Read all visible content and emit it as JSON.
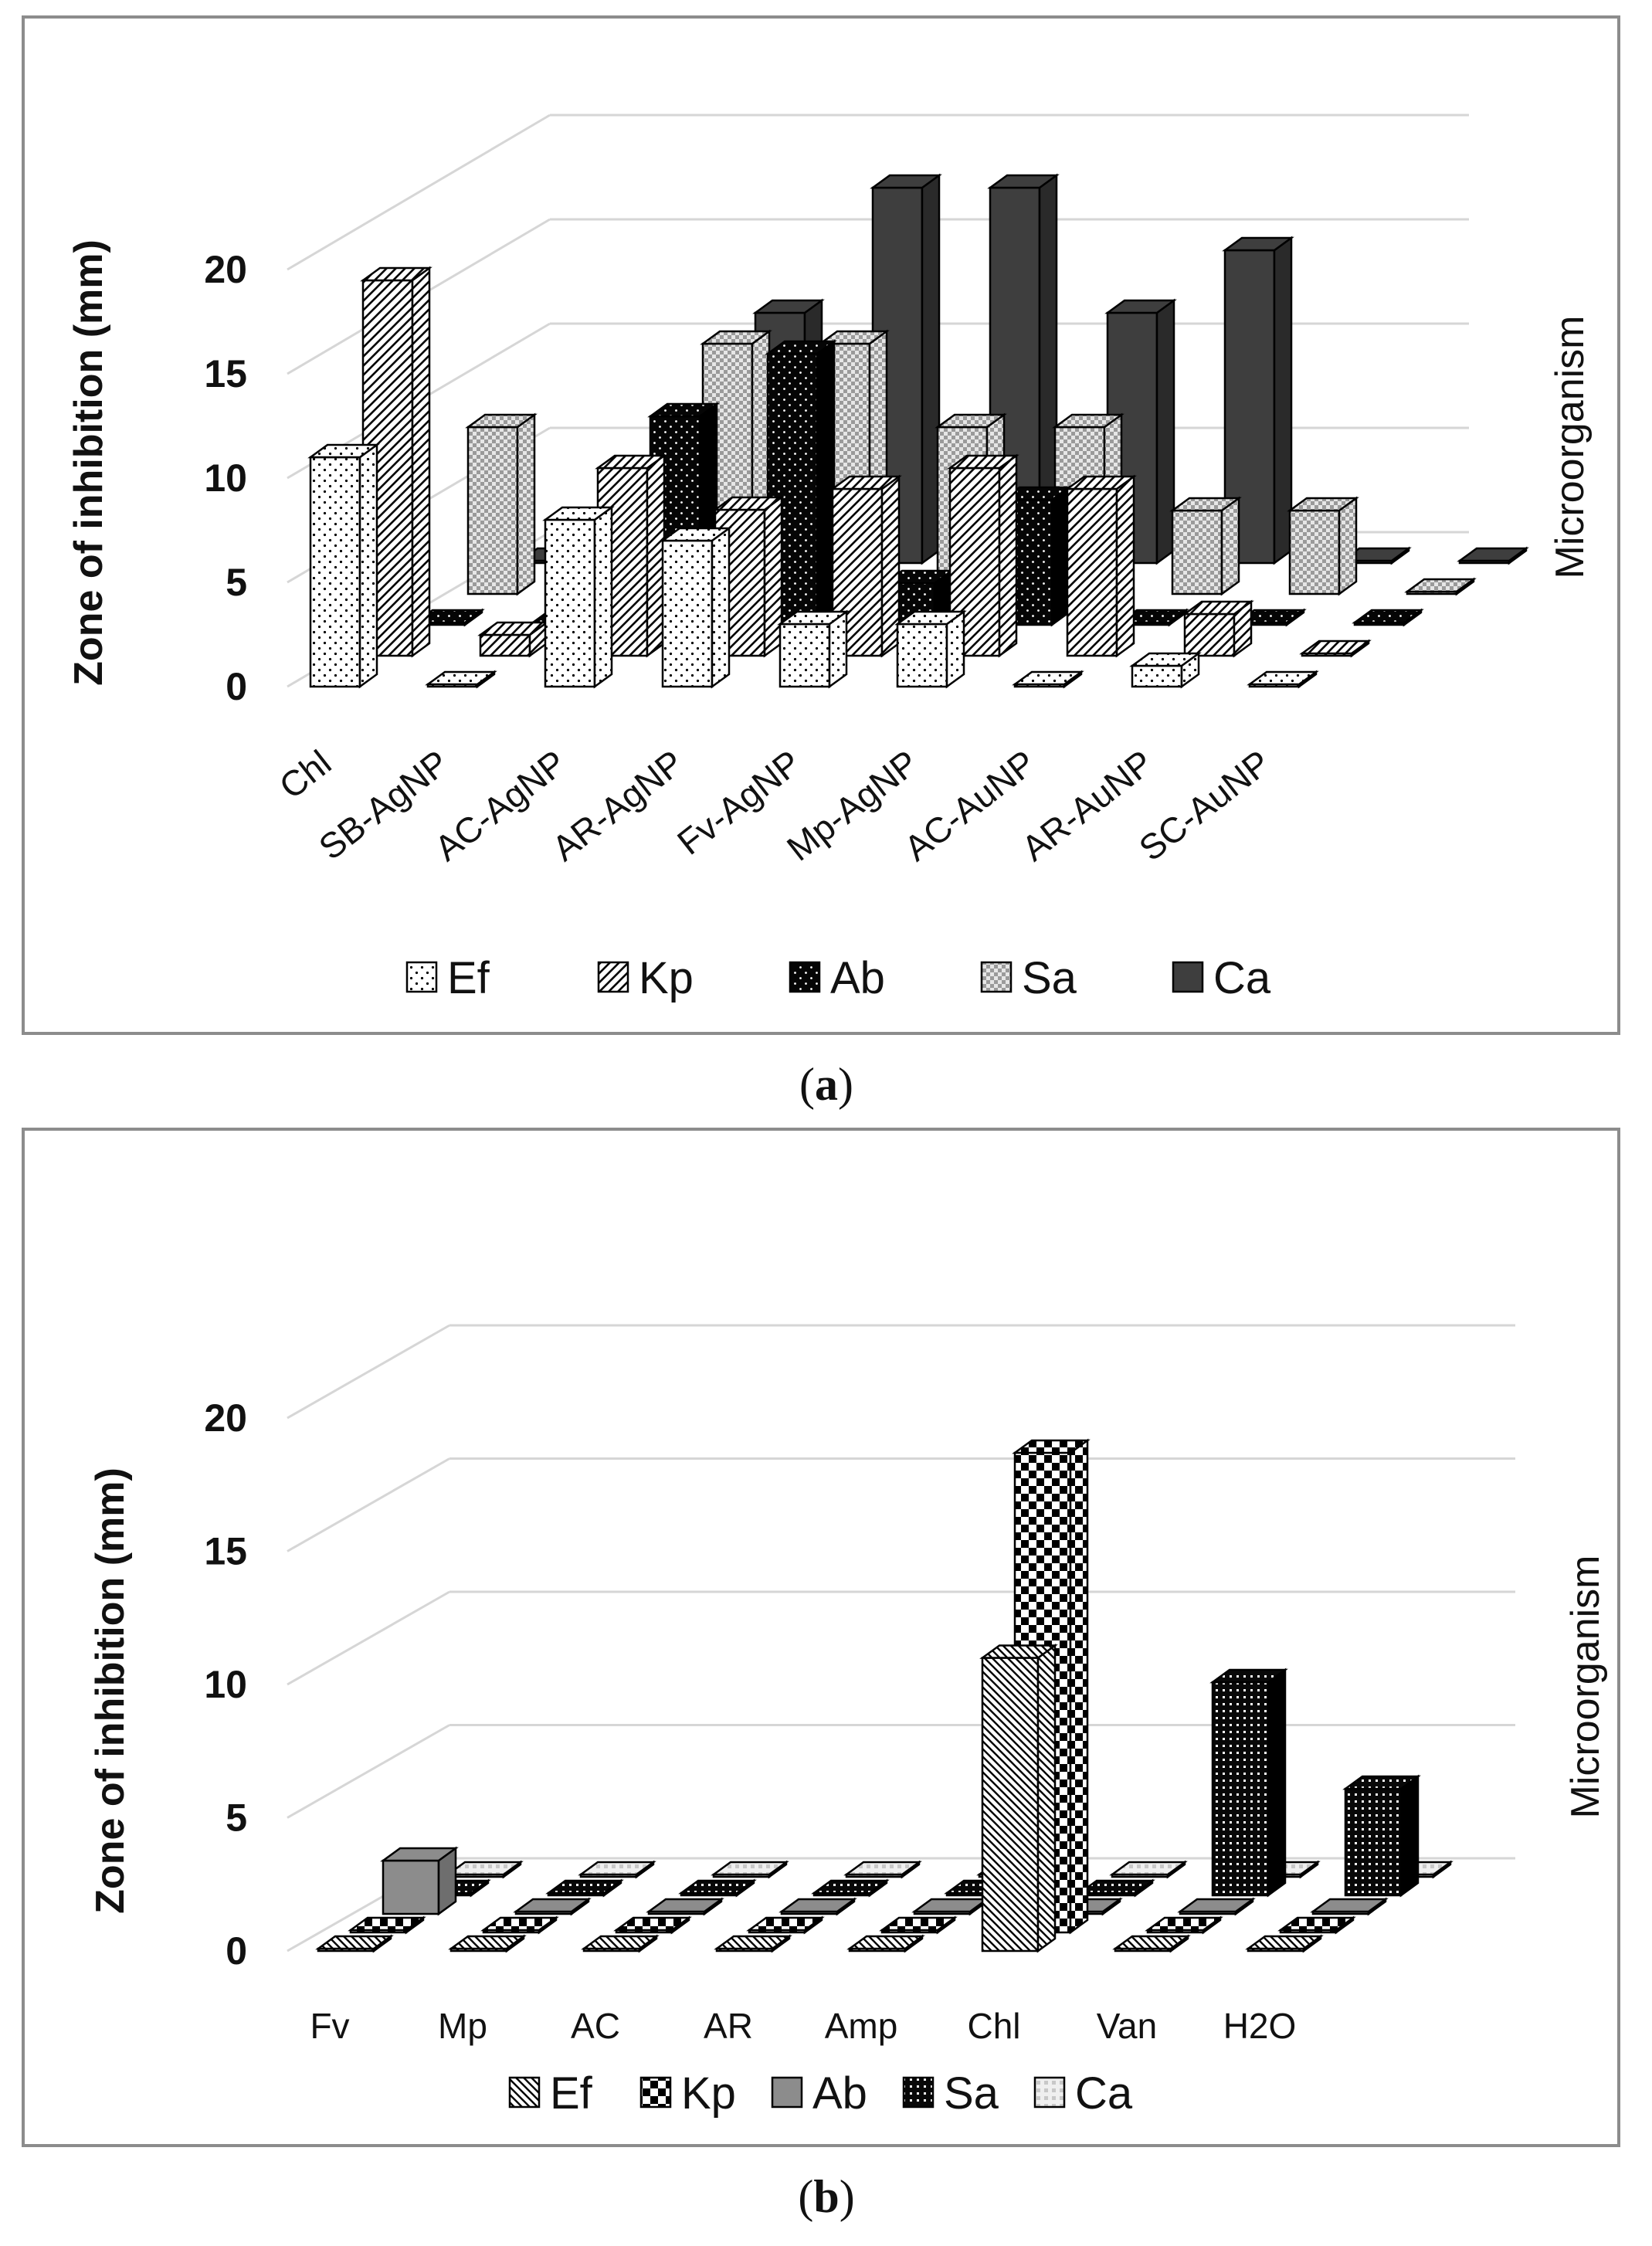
{
  "captions": {
    "a": "a",
    "b": "b"
  },
  "chart_data": [
    {
      "type": "bar",
      "subtype": "3d-clustered-bar",
      "panel": "a",
      "ylabel": "Zone of inhibition (mm)",
      "zlabel": "Microorganism",
      "ylim": [
        0,
        20
      ],
      "yticks": [
        0,
        5,
        10,
        15,
        20
      ],
      "categories": [
        "Chl",
        "SB-AgNP",
        "AC-AgNP",
        "AR-AgNP",
        "Fv-AgNP",
        "Mp-AgNP",
        "AC-AuNP",
        "AR-AuNP",
        "SC-AuNP"
      ],
      "series": [
        {
          "name": "Ef",
          "pattern": "dots",
          "values": [
            11,
            0,
            8,
            7,
            3,
            3,
            0,
            1,
            0
          ]
        },
        {
          "name": "Kp",
          "pattern": "diag",
          "values": [
            18,
            1,
            9,
            7,
            8,
            9,
            8,
            2,
            0
          ]
        },
        {
          "name": "Ab",
          "pattern": "black-dots",
          "values": [
            0,
            0,
            10,
            13,
            2,
            6,
            0,
            0,
            0
          ]
        },
        {
          "name": "Sa",
          "pattern": "grey-check",
          "values": [
            8,
            0,
            12,
            12,
            8,
            8,
            4,
            4,
            0
          ]
        },
        {
          "name": "Ca",
          "pattern": "dark",
          "values": [
            0,
            0,
            12,
            18,
            18,
            12,
            15,
            0,
            0
          ]
        }
      ],
      "legend": [
        "Ef",
        "Kp",
        "Ab",
        "Sa",
        "Ca"
      ]
    },
    {
      "type": "bar",
      "subtype": "3d-clustered-bar",
      "panel": "b",
      "ylabel": "Zone of inhibition (mm)",
      "zlabel": "Microorganism",
      "ylim": [
        0,
        20
      ],
      "yticks": [
        0,
        5,
        10,
        15,
        20
      ],
      "categories": [
        "Fv",
        "Mp",
        "AC",
        "AR",
        "Amp",
        "Chl",
        "Van",
        "H2O"
      ],
      "series": [
        {
          "name": "Ef",
          "pattern": "diag-fine",
          "values": [
            0,
            0,
            0,
            0,
            0,
            11,
            0,
            0
          ]
        },
        {
          "name": "Kp",
          "pattern": "checker",
          "values": [
            0,
            0,
            0,
            0,
            0,
            18,
            0,
            0
          ]
        },
        {
          "name": "Ab",
          "pattern": "grey",
          "values": [
            2,
            0,
            0,
            0,
            0,
            0,
            0,
            0
          ]
        },
        {
          "name": "Sa",
          "pattern": "black-grid",
          "values": [
            0,
            0,
            0,
            0,
            0,
            0,
            8,
            4
          ]
        },
        {
          "name": "Ca",
          "pattern": "light",
          "values": [
            0,
            0,
            0,
            0,
            0,
            0,
            0,
            0
          ]
        }
      ],
      "legend": [
        "Ef",
        "Kp",
        "Ab",
        "Sa",
        "Ca"
      ]
    }
  ]
}
